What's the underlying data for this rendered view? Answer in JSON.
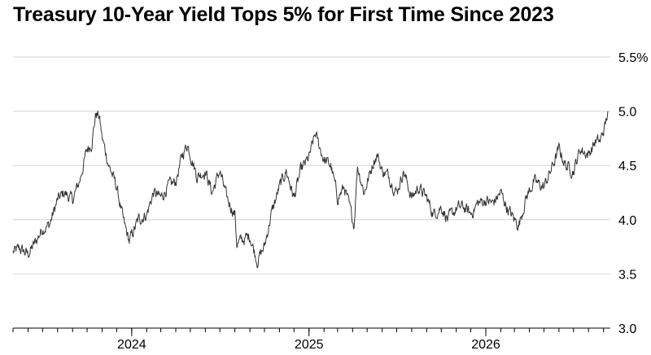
{
  "chart_data": {
    "type": "line",
    "title": "Treasury 10-Year Yield Tops 5% for First Time Since 2023",
    "xlabel": "",
    "ylabel": "",
    "ylim": [
      3.0,
      5.5
    ],
    "y_ticks": [
      "3.0",
      "3.5",
      "4.0",
      "4.5",
      "5.0",
      "5.5%"
    ],
    "y_tick_values": [
      3.0,
      3.5,
      4.0,
      4.5,
      5.0,
      5.5
    ],
    "x_range": [
      "2023-05-01",
      "2026-09-15"
    ],
    "x_ticks": [
      {
        "label": "2024",
        "date": "2024-01-01"
      },
      {
        "label": "2025",
        "date": "2025-01-01"
      },
      {
        "label": "2026",
        "date": "2026-01-01"
      }
    ],
    "grid": true,
    "legend": "none",
    "series": [
      {
        "color": "#333333",
        "points": [
          [
            "2023-05-01",
            3.7
          ],
          [
            "2023-05-15",
            3.73
          ],
          [
            "2023-06-01",
            3.68
          ],
          [
            "2023-06-15",
            3.78
          ],
          [
            "2023-07-01",
            3.92
          ],
          [
            "2023-07-15",
            3.95
          ],
          [
            "2023-08-01",
            4.18
          ],
          [
            "2023-08-15",
            4.25
          ],
          [
            "2023-09-01",
            4.18
          ],
          [
            "2023-09-15",
            4.35
          ],
          [
            "2023-10-01",
            4.65
          ],
          [
            "2023-10-10",
            4.7
          ],
          [
            "2023-10-19",
            4.98
          ],
          [
            "2023-10-26",
            4.95
          ],
          [
            "2023-11-01",
            4.75
          ],
          [
            "2023-11-15",
            4.5
          ],
          [
            "2023-12-01",
            4.3
          ],
          [
            "2023-12-15",
            3.98
          ],
          [
            "2023-12-27",
            3.8
          ],
          [
            "2024-01-15",
            4.0
          ],
          [
            "2024-02-01",
            4.05
          ],
          [
            "2024-02-15",
            4.25
          ],
          [
            "2024-03-01",
            4.2
          ],
          [
            "2024-03-15",
            4.3
          ],
          [
            "2024-04-01",
            4.35
          ],
          [
            "2024-04-15",
            4.6
          ],
          [
            "2024-04-25",
            4.7
          ],
          [
            "2024-05-15",
            4.4
          ],
          [
            "2024-06-01",
            4.45
          ],
          [
            "2024-06-15",
            4.25
          ],
          [
            "2024-07-01",
            4.45
          ],
          [
            "2024-07-15",
            4.2
          ],
          [
            "2024-08-01",
            4.05
          ],
          [
            "2024-08-05",
            3.78
          ],
          [
            "2024-08-20",
            3.82
          ],
          [
            "2024-09-01",
            3.85
          ],
          [
            "2024-09-16",
            3.62
          ],
          [
            "2024-10-01",
            3.75
          ],
          [
            "2024-10-15",
            4.05
          ],
          [
            "2024-11-01",
            4.3
          ],
          [
            "2024-11-15",
            4.45
          ],
          [
            "2024-12-01",
            4.2
          ],
          [
            "2024-12-15",
            4.45
          ],
          [
            "2025-01-01",
            4.57
          ],
          [
            "2025-01-14",
            4.79
          ],
          [
            "2025-02-01",
            4.55
          ],
          [
            "2025-02-15",
            4.5
          ],
          [
            "2025-03-01",
            4.2
          ],
          [
            "2025-03-15",
            4.3
          ],
          [
            "2025-04-04",
            3.95
          ],
          [
            "2025-04-11",
            4.5
          ],
          [
            "2025-04-25",
            4.25
          ],
          [
            "2025-05-15",
            4.55
          ],
          [
            "2025-05-22",
            4.6
          ],
          [
            "2025-06-01",
            4.45
          ],
          [
            "2025-06-15",
            4.4
          ],
          [
            "2025-07-01",
            4.25
          ],
          [
            "2025-07-15",
            4.45
          ],
          [
            "2025-08-01",
            4.2
          ],
          [
            "2025-08-15",
            4.3
          ],
          [
            "2025-09-01",
            4.2
          ],
          [
            "2025-09-15",
            4.05
          ],
          [
            "2025-10-01",
            4.12
          ],
          [
            "2025-10-15",
            4.0
          ],
          [
            "2025-11-01",
            4.1
          ],
          [
            "2025-11-15",
            4.12
          ],
          [
            "2025-12-01",
            4.05
          ],
          [
            "2025-12-15",
            4.15
          ],
          [
            "2026-01-01",
            4.18
          ],
          [
            "2026-01-15",
            4.15
          ],
          [
            "2026-02-01",
            4.25
          ],
          [
            "2026-02-15",
            4.1
          ],
          [
            "2026-03-01",
            4.0
          ],
          [
            "2026-03-10",
            3.95
          ],
          [
            "2026-03-25",
            4.2
          ],
          [
            "2026-04-10",
            4.35
          ],
          [
            "2026-05-01",
            4.3
          ],
          [
            "2026-05-15",
            4.45
          ],
          [
            "2026-06-01",
            4.65
          ],
          [
            "2026-06-15",
            4.5
          ],
          [
            "2026-07-01",
            4.45
          ],
          [
            "2026-07-15",
            4.65
          ],
          [
            "2026-08-01",
            4.6
          ],
          [
            "2026-08-15",
            4.72
          ],
          [
            "2026-08-25",
            4.72
          ],
          [
            "2026-09-05",
            4.88
          ],
          [
            "2026-09-10",
            5.0
          ]
        ]
      }
    ]
  }
}
